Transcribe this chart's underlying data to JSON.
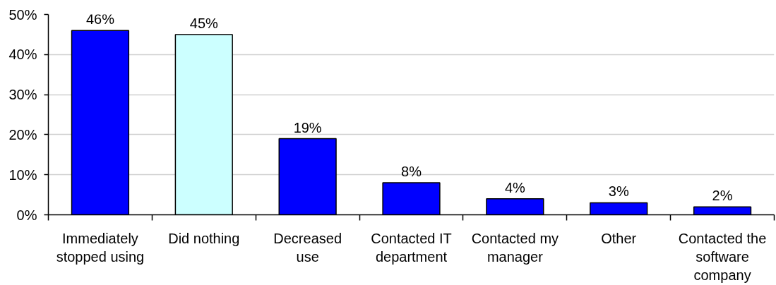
{
  "chart_data": {
    "type": "bar",
    "categories": [
      "Immediately\nstopped using",
      "Did nothing",
      "Decreased\nuse",
      "Contacted IT\ndepartment",
      "Contacted my\nmanager",
      "Other",
      "Contacted the\nsoftware\ncompany"
    ],
    "values": [
      46,
      45,
      19,
      8,
      4,
      3,
      2
    ],
    "colors": [
      "#0000ff",
      "#ccffff",
      "#0000ff",
      "#0000ff",
      "#0000ff",
      "#0000ff",
      "#0000ff"
    ],
    "value_labels": [
      "46%",
      "45%",
      "19%",
      "8%",
      "4%",
      "3%",
      "2%"
    ],
    "ylim": [
      0,
      50
    ],
    "yticks": [
      {
        "value": 0,
        "label": "0%"
      },
      {
        "value": 10,
        "label": "10%"
      },
      {
        "value": 20,
        "label": "20%"
      },
      {
        "value": 30,
        "label": "30%"
      },
      {
        "value": 40,
        "label": "40%"
      },
      {
        "value": 50,
        "label": "50%"
      }
    ],
    "grid": "y"
  }
}
